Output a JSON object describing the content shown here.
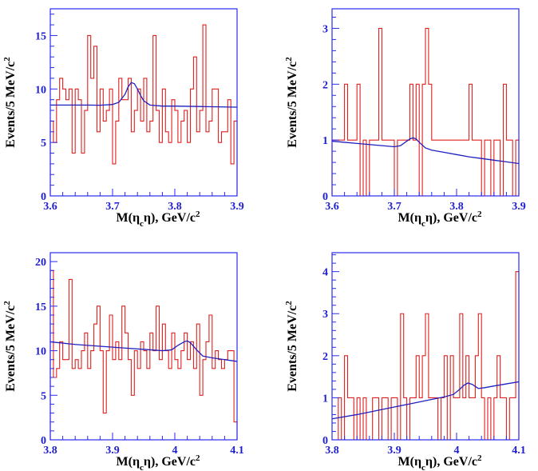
{
  "colors": {
    "histogram": "#e0201f",
    "fit": "#1f1fbf",
    "frame": "#2a2af0",
    "tick_labels": "#1f1fd0",
    "text": "#000000"
  },
  "chart_data": [
    {
      "type": "histogram",
      "panel": "top-left",
      "xlabel": "M(η_cη), GeV/c²",
      "xlabel_parts": {
        "main": "M(η",
        "sub": "c",
        "mid": "η), GeV/c",
        "sup": "2"
      },
      "ylabel_parts": {
        "main": "Events/5 MeV/c",
        "sup": "2"
      },
      "xlim": [
        3.6,
        3.9
      ],
      "ylim": [
        0,
        17.5
      ],
      "xticks": [
        3.6,
        3.7,
        3.8,
        3.9
      ],
      "xtick_labels": [
        "3.6",
        "3.7",
        "3.8",
        "3.9"
      ],
      "yticks": [
        0,
        5,
        10,
        15
      ],
      "ytick_labels": [
        "0",
        "5",
        "10",
        "15"
      ],
      "bin_width": 0.005,
      "bin_counts": [
        7,
        5,
        9,
        11,
        10,
        9,
        10,
        4,
        10,
        9,
        4,
        8,
        15,
        11,
        14,
        6,
        10,
        7,
        8,
        10,
        3,
        7,
        11,
        9,
        9,
        11,
        6,
        8,
        10,
        7,
        11,
        6,
        7,
        15,
        8,
        5,
        10,
        6,
        5,
        9,
        8,
        5,
        7,
        8,
        5,
        10,
        13,
        6,
        8,
        16,
        6,
        7,
        10,
        10,
        5,
        6,
        6,
        9,
        3,
        7
      ],
      "fit": {
        "x": [
          3.6,
          3.62,
          3.64,
          3.66,
          3.68,
          3.7,
          3.71,
          3.72,
          3.725,
          3.73,
          3.735,
          3.74,
          3.745,
          3.75,
          3.76,
          3.78,
          3.8,
          3.82,
          3.84,
          3.86,
          3.88,
          3.9
        ],
        "y": [
          8.5,
          8.5,
          8.5,
          8.5,
          8.48,
          8.55,
          8.75,
          9.5,
          10.2,
          10.6,
          10.5,
          10.0,
          9.4,
          8.9,
          8.5,
          8.4,
          8.4,
          8.38,
          8.36,
          8.34,
          8.32,
          8.3
        ]
      }
    },
    {
      "type": "histogram",
      "panel": "top-right",
      "xlabel": "M(η_cη), GeV/c²",
      "xlabel_parts": {
        "main": "M(η",
        "sub": "c",
        "mid": "η), GeV/c",
        "sup": "2"
      },
      "ylabel_parts": {
        "main": "Events/5 MeV/c",
        "sup": "2"
      },
      "xlim": [
        3.6,
        3.9
      ],
      "ylim": [
        0,
        3.35
      ],
      "xticks": [
        3.6,
        3.7,
        3.8,
        3.9
      ],
      "xtick_labels": [
        "3.6",
        "3.7",
        "3.8",
        "3.9"
      ],
      "yticks": [
        0,
        1,
        2,
        3
      ],
      "ytick_labels": [
        "0",
        "1",
        "2",
        "3"
      ],
      "bin_width": 0.005,
      "bin_counts": [
        1,
        1,
        1,
        1,
        2,
        1,
        1,
        1,
        2,
        0,
        1,
        0,
        1,
        1,
        1,
        3,
        1,
        1,
        1,
        1,
        0,
        1,
        1,
        1,
        1,
        2,
        1,
        2,
        0,
        2,
        3,
        2,
        1,
        1,
        1,
        1,
        1,
        1,
        1,
        1,
        1,
        1,
        1,
        1,
        2,
        1,
        1,
        1,
        0,
        1,
        1,
        0,
        1,
        1,
        0,
        2,
        1,
        1,
        0,
        1
      ],
      "fit": {
        "x": [
          3.6,
          3.62,
          3.64,
          3.66,
          3.68,
          3.7,
          3.71,
          3.72,
          3.725,
          3.73,
          3.735,
          3.74,
          3.75,
          3.76,
          3.78,
          3.8,
          3.82,
          3.84,
          3.86,
          3.88,
          3.9
        ],
        "y": [
          0.98,
          0.96,
          0.94,
          0.92,
          0.9,
          0.88,
          0.9,
          0.98,
          1.02,
          1.04,
          1.02,
          0.96,
          0.86,
          0.82,
          0.78,
          0.74,
          0.7,
          0.67,
          0.64,
          0.61,
          0.58
        ]
      }
    },
    {
      "type": "histogram",
      "panel": "bottom-left",
      "xlabel": "M(η_cη), GeV/c²",
      "xlabel_parts": {
        "main": "M(η",
        "sub": "c",
        "mid": "η), GeV/c",
        "sup": "2"
      },
      "ylabel_parts": {
        "main": "Events/5 MeV/c",
        "sup": "2"
      },
      "xlim": [
        3.8,
        4.1
      ],
      "ylim": [
        0,
        21
      ],
      "xticks": [
        3.8,
        3.9,
        4.0,
        4.1
      ],
      "xtick_labels": [
        "3.8",
        "3.9",
        "4",
        "4.1"
      ],
      "yticks": [
        0,
        5,
        10,
        15,
        20
      ],
      "ytick_labels": [
        "0",
        "5",
        "10",
        "15",
        "20"
      ],
      "bin_width": 0.005,
      "bin_counts": [
        19,
        7,
        8,
        11,
        9,
        9,
        18,
        8,
        9,
        8,
        10,
        12,
        8,
        10,
        13,
        15,
        10,
        3,
        10,
        14,
        9,
        11,
        9,
        15,
        12,
        9,
        5,
        10,
        8,
        11,
        10,
        8,
        12,
        10,
        15,
        9,
        13,
        10,
        8,
        12,
        9,
        8,
        10,
        12,
        9,
        11,
        8,
        13,
        5,
        9,
        11,
        14,
        8,
        10,
        9,
        8,
        9,
        10,
        10,
        2
      ],
      "fit": {
        "x": [
          3.8,
          3.84,
          3.88,
          3.92,
          3.96,
          3.98,
          3.995,
          4.005,
          4.015,
          4.02,
          4.025,
          4.035,
          4.045,
          4.06,
          4.08,
          4.1
        ],
        "y": [
          11.0,
          10.7,
          10.5,
          10.3,
          10.1,
          10.0,
          10.1,
          10.6,
          11.0,
          11.1,
          10.9,
          10.1,
          9.4,
          9.2,
          9.0,
          8.8
        ]
      }
    },
    {
      "type": "histogram",
      "panel": "bottom-right",
      "xlabel": "M(η_cη), GeV/c²",
      "xlabel_parts": {
        "main": "M(η",
        "sub": "c",
        "mid": "η), GeV/c",
        "sup": "2"
      },
      "ylabel_parts": {
        "main": "Events/5 MeV/c",
        "sup": "2"
      },
      "xlim": [
        3.8,
        4.1
      ],
      "ylim": [
        0,
        4.45
      ],
      "xticks": [
        3.8,
        3.9,
        4.0,
        4.1
      ],
      "xtick_labels": [
        "3.8",
        "3.9",
        "4",
        "4.1"
      ],
      "yticks": [
        0,
        1,
        2,
        3,
        4
      ],
      "ytick_labels": [
        "0",
        "1",
        "2",
        "3",
        "4"
      ],
      "bin_width": 0.005,
      "bin_counts": [
        0,
        0,
        1,
        0,
        2,
        1,
        1,
        0,
        1,
        0,
        1,
        0,
        0,
        1,
        1,
        0,
        1,
        1,
        0,
        1,
        1,
        0,
        3,
        1,
        0,
        1,
        1,
        2,
        1,
        2,
        3,
        1,
        1,
        1,
        0,
        1,
        2,
        0,
        2,
        1,
        1,
        3,
        1,
        2,
        1,
        1,
        2,
        3,
        1,
        0,
        1,
        0,
        1,
        2,
        1,
        1,
        0,
        1,
        1,
        4
      ],
      "fit": {
        "x": [
          3.8,
          3.84,
          3.88,
          3.92,
          3.96,
          3.98,
          3.995,
          4.005,
          4.012,
          4.018,
          4.025,
          4.035,
          4.045,
          4.06,
          4.08,
          4.1
        ],
        "y": [
          0.5,
          0.6,
          0.72,
          0.84,
          0.96,
          1.02,
          1.08,
          1.2,
          1.3,
          1.35,
          1.32,
          1.22,
          1.24,
          1.28,
          1.33,
          1.38
        ]
      }
    }
  ]
}
